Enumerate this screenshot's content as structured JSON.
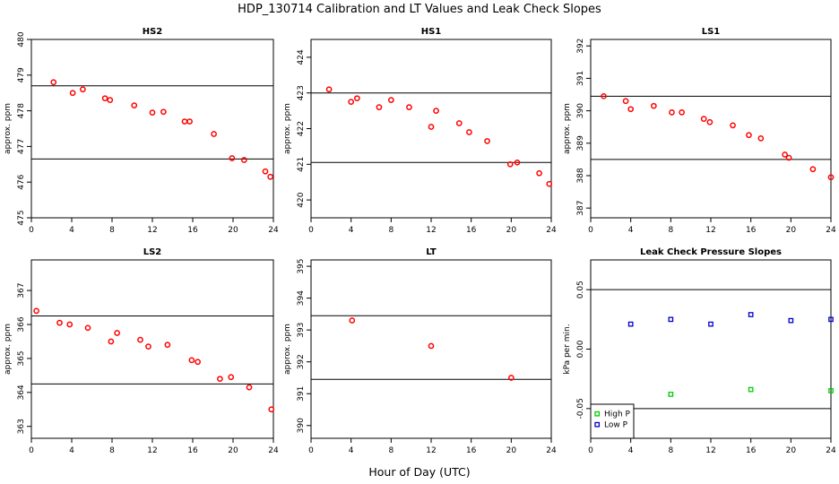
{
  "title": "HDP_130714  Calibration and LT Values and Leak Check Slopes",
  "xlabel": "Hour of Day (UTC)",
  "colors": {
    "calib": "#ff0000",
    "high_p": "#00cc00",
    "low_p": "#0000cc",
    "line": "#000000"
  },
  "chart_data": [
    {
      "type": "scatter",
      "title": "HS2",
      "ylabel": "approx. ppm",
      "xlim": [
        0,
        24
      ],
      "ylim": [
        475,
        480
      ],
      "xticks": [
        0,
        4,
        8,
        12,
        16,
        20,
        24
      ],
      "yticks": [
        475,
        476,
        477,
        478,
        479,
        480
      ],
      "hlines": [
        478.7,
        476.65
      ],
      "series": [
        {
          "name": "calibration",
          "color": "#ff0000",
          "marker": "circle",
          "x": [
            2.2,
            4.1,
            5.1,
            7.3,
            7.8,
            10.2,
            12.0,
            13.1,
            15.2,
            15.7,
            18.1,
            19.9,
            21.1,
            23.2,
            23.7
          ],
          "y": [
            478.8,
            478.5,
            478.6,
            478.35,
            478.3,
            478.15,
            477.95,
            477.97,
            477.7,
            477.7,
            477.35,
            476.67,
            476.62,
            476.3,
            476.15
          ]
        }
      ]
    },
    {
      "type": "scatter",
      "title": "HS1",
      "ylabel": "approx. ppm",
      "xlim": [
        0,
        24
      ],
      "ylim": [
        419.5,
        424.5
      ],
      "xticks": [
        0,
        4,
        8,
        12,
        16,
        20,
        24
      ],
      "yticks": [
        420,
        421,
        422,
        423,
        424
      ],
      "hlines": [
        423.0,
        421.05
      ],
      "series": [
        {
          "name": "calibration",
          "color": "#ff0000",
          "marker": "circle",
          "x": [
            1.8,
            4.0,
            4.6,
            6.8,
            8.0,
            9.8,
            12.0,
            12.5,
            14.8,
            15.8,
            17.6,
            19.9,
            20.6,
            22.8,
            23.8
          ],
          "y": [
            423.1,
            422.75,
            422.85,
            422.6,
            422.8,
            422.6,
            422.05,
            422.5,
            422.15,
            421.9,
            421.65,
            421.0,
            421.05,
            420.75,
            420.45
          ]
        }
      ]
    },
    {
      "type": "scatter",
      "title": "LS1",
      "ylabel": "approx. ppm",
      "xlim": [
        0,
        24
      ],
      "ylim": [
        386.7,
        392.2
      ],
      "xticks": [
        0,
        4,
        8,
        12,
        16,
        20,
        24
      ],
      "yticks": [
        387,
        388,
        389,
        390,
        391,
        392
      ],
      "hlines": [
        390.45,
        388.5
      ],
      "series": [
        {
          "name": "calibration",
          "color": "#ff0000",
          "marker": "circle",
          "x": [
            1.3,
            3.5,
            4.0,
            6.3,
            8.1,
            9.1,
            11.3,
            11.9,
            14.2,
            15.8,
            17.0,
            19.4,
            19.8,
            22.2,
            24.0
          ],
          "y": [
            390.45,
            390.3,
            390.05,
            390.15,
            389.95,
            389.95,
            389.75,
            389.65,
            389.55,
            389.25,
            389.15,
            388.65,
            388.55,
            388.2,
            387.95
          ]
        }
      ]
    },
    {
      "type": "scatter",
      "title": "LS2",
      "ylabel": "approx. ppm",
      "xlim": [
        0,
        24
      ],
      "ylim": [
        362.65,
        367.9
      ],
      "xticks": [
        0,
        4,
        8,
        12,
        16,
        20,
        24
      ],
      "yticks": [
        363,
        364,
        365,
        366,
        367
      ],
      "hlines": [
        366.25,
        364.25
      ],
      "series": [
        {
          "name": "calibration",
          "color": "#ff0000",
          "marker": "circle",
          "x": [
            0.5,
            2.8,
            3.8,
            5.6,
            7.9,
            8.5,
            10.8,
            11.6,
            13.5,
            15.9,
            16.5,
            18.7,
            19.8,
            21.6,
            23.8
          ],
          "y": [
            366.4,
            366.05,
            366.0,
            365.9,
            365.5,
            365.75,
            365.55,
            365.35,
            365.4,
            364.95,
            364.9,
            364.4,
            364.45,
            364.15,
            363.5
          ]
        }
      ]
    },
    {
      "type": "scatter",
      "title": "LT",
      "ylabel": "approx. ppm",
      "xlim": [
        0,
        24
      ],
      "ylim": [
        389.6,
        395.2
      ],
      "xticks": [
        0,
        4,
        8,
        12,
        16,
        20,
        24
      ],
      "yticks": [
        390,
        391,
        392,
        393,
        394,
        395
      ],
      "hlines": [
        393.45,
        391.45
      ],
      "series": [
        {
          "name": "calibration",
          "color": "#ff0000",
          "marker": "circle",
          "x": [
            4.1,
            12.0,
            20.0
          ],
          "y": [
            393.3,
            392.5,
            391.5
          ]
        }
      ]
    },
    {
      "type": "scatter",
      "title": "Leak Check Pressure Slopes",
      "ylabel": "kPa per min.",
      "xlim": [
        0,
        24
      ],
      "ylim": [
        -0.075,
        0.075
      ],
      "xticks": [
        0,
        4,
        8,
        12,
        16,
        20,
        24
      ],
      "yticks": [
        -0.05,
        0.0,
        0.05
      ],
      "ytick_labels": [
        "-0.05",
        "0.00",
        "0.05"
      ],
      "hlines": [
        0.05,
        -0.05
      ],
      "legend": [
        "High P",
        "Low P"
      ],
      "series": [
        {
          "name": "High P",
          "color": "#00cc00",
          "marker": "square",
          "x": [
            8,
            16,
            24
          ],
          "y": [
            -0.038,
            -0.034,
            -0.035
          ]
        },
        {
          "name": "Low P",
          "color": "#0000cc",
          "marker": "square",
          "x": [
            4,
            8,
            12,
            16,
            20,
            24
          ],
          "y": [
            0.021,
            0.025,
            0.021,
            0.029,
            0.024,
            0.025
          ]
        }
      ]
    }
  ]
}
